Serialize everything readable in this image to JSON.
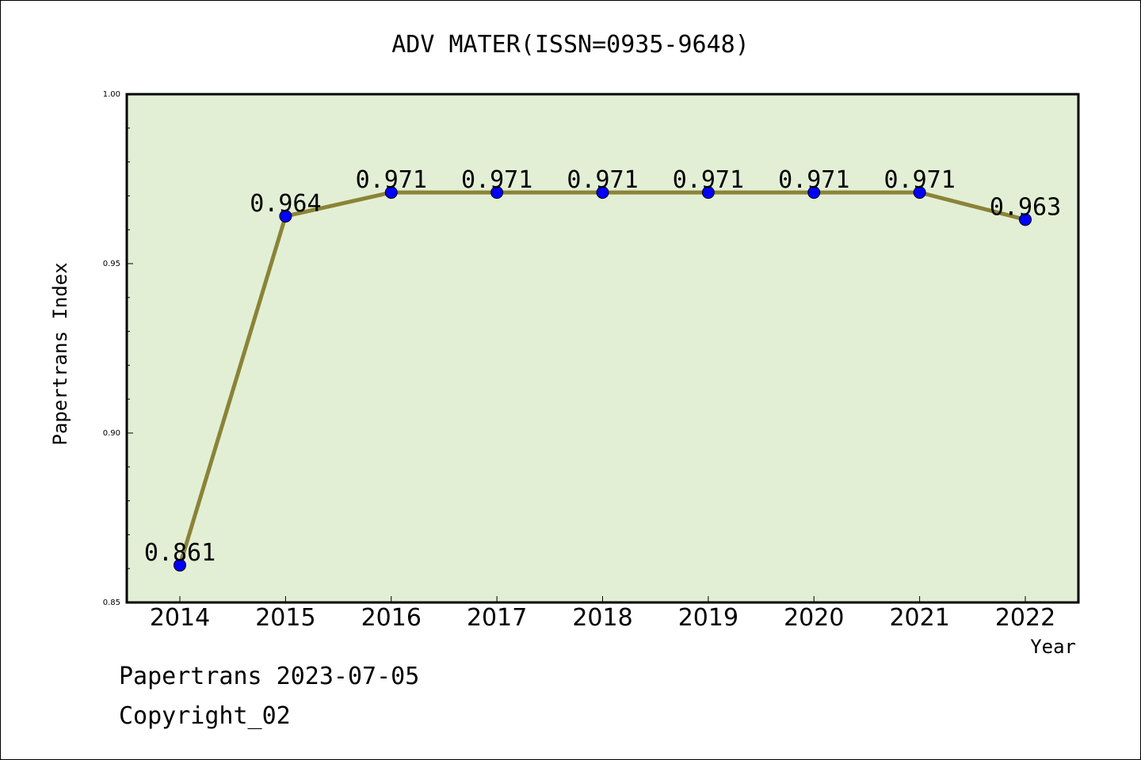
{
  "chart_data": {
    "type": "line",
    "title": "ADV MATER(ISSN=0935-9648)",
    "xlabel": "Year",
    "ylabel": "Papertrans Index",
    "categories": [
      "2014",
      "2015",
      "2016",
      "2017",
      "2018",
      "2019",
      "2020",
      "2021",
      "2022"
    ],
    "values": [
      0.861,
      0.964,
      0.971,
      0.971,
      0.971,
      0.971,
      0.971,
      0.971,
      0.963
    ],
    "data_labels": [
      "0.861",
      "0.964",
      "0.971",
      "0.971",
      "0.971",
      "0.971",
      "0.971",
      "0.971",
      "0.963"
    ],
    "ylim": [
      0.85,
      1.0
    ],
    "yticks": [
      "0.85",
      "0.90",
      "0.95",
      "1.00"
    ],
    "grid": false,
    "colors": {
      "plot_background": "#e2efd5",
      "line": "#8b8336",
      "marker": "#0000ff"
    }
  },
  "footer": {
    "line1": "Papertrans 2023-07-05",
    "line2": "Copyright_02"
  }
}
